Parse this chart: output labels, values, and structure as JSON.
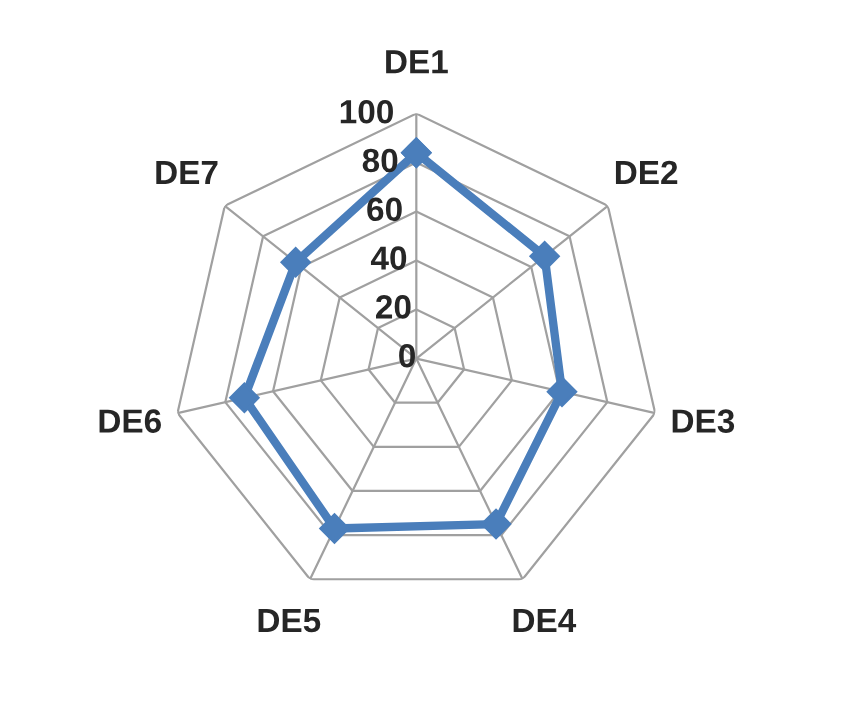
{
  "chart_data": {
    "type": "radar",
    "categories": [
      "DE1",
      "DE2",
      "DE3",
      "DE4",
      "DE5",
      "DE6",
      "DE7"
    ],
    "series": [
      {
        "color": "#4a7ebb",
        "values": [
          84,
          67,
          61,
          75,
          77,
          72,
          63
        ]
      }
    ],
    "ylim": [
      0,
      100
    ],
    "yticks": [
      0,
      20,
      40,
      60,
      80,
      100
    ],
    "grid": true,
    "marker": "diamond",
    "line_style": "solid"
  }
}
